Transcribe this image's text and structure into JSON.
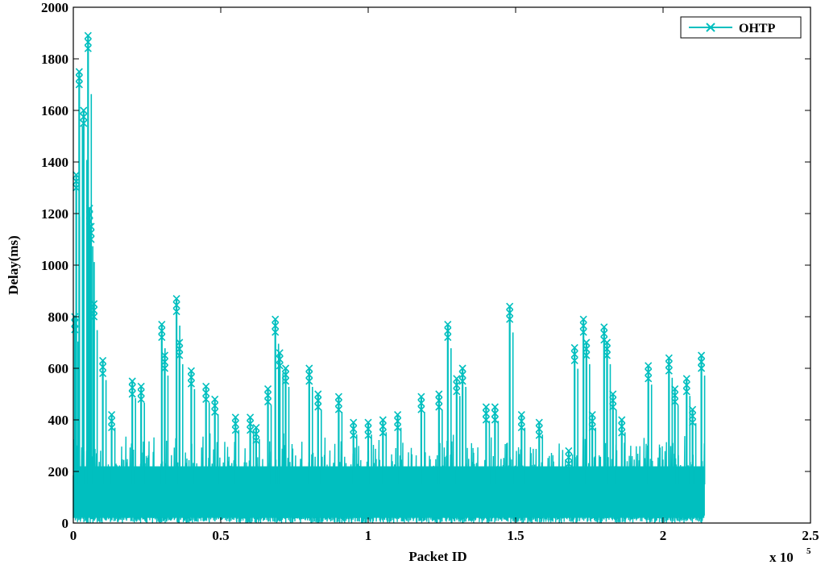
{
  "chart_data": {
    "type": "line",
    "title": "",
    "xlabel": "Packet ID",
    "ylabel": "Delay(ms)",
    "x_multiplier_label": "x 10",
    "x_multiplier_exponent": "5",
    "xlim": [
      0,
      2.5
    ],
    "ylim": [
      0,
      2000
    ],
    "x_ticks": [
      0,
      0.5,
      1,
      1.5,
      2,
      2.5
    ],
    "x_tick_labels": [
      "0",
      "0.5",
      "1",
      "1.5",
      "2",
      "2.5"
    ],
    "y_ticks": [
      0,
      200,
      400,
      600,
      800,
      1000,
      1200,
      1400,
      1600,
      1800,
      2000
    ],
    "y_tick_labels": [
      "0",
      "200",
      "400",
      "600",
      "800",
      "1000",
      "1200",
      "1400",
      "1600",
      "1800",
      "2000"
    ],
    "grid": false,
    "legend_position": "top-right",
    "colors": {
      "series": "#00bfbf",
      "axes": "#000000",
      "background": "#ffffff"
    },
    "series": [
      {
        "name": "OHTP",
        "marker": "x",
        "x_range": [
          0,
          2.14
        ],
        "baseline_band": [
          0,
          330
        ],
        "peaks": [
          {
            "x": 0.005,
            "y": 800
          },
          {
            "x": 0.01,
            "y": 1350
          },
          {
            "x": 0.02,
            "y": 1750
          },
          {
            "x": 0.035,
            "y": 1600
          },
          {
            "x": 0.05,
            "y": 1890
          },
          {
            "x": 0.055,
            "y": 1220
          },
          {
            "x": 0.06,
            "y": 1150
          },
          {
            "x": 0.07,
            "y": 850
          },
          {
            "x": 0.1,
            "y": 630
          },
          {
            "x": 0.13,
            "y": 420
          },
          {
            "x": 0.2,
            "y": 550
          },
          {
            "x": 0.23,
            "y": 530
          },
          {
            "x": 0.3,
            "y": 770
          },
          {
            "x": 0.31,
            "y": 650
          },
          {
            "x": 0.35,
            "y": 870
          },
          {
            "x": 0.36,
            "y": 700
          },
          {
            "x": 0.4,
            "y": 590
          },
          {
            "x": 0.45,
            "y": 530
          },
          {
            "x": 0.48,
            "y": 480
          },
          {
            "x": 0.55,
            "y": 410
          },
          {
            "x": 0.6,
            "y": 410
          },
          {
            "x": 0.62,
            "y": 370
          },
          {
            "x": 0.66,
            "y": 520
          },
          {
            "x": 0.685,
            "y": 790
          },
          {
            "x": 0.7,
            "y": 660
          },
          {
            "x": 0.72,
            "y": 600
          },
          {
            "x": 0.8,
            "y": 600
          },
          {
            "x": 0.83,
            "y": 500
          },
          {
            "x": 0.9,
            "y": 490
          },
          {
            "x": 0.95,
            "y": 390
          },
          {
            "x": 1.0,
            "y": 390
          },
          {
            "x": 1.05,
            "y": 400
          },
          {
            "x": 1.1,
            "y": 420
          },
          {
            "x": 1.18,
            "y": 490
          },
          {
            "x": 1.24,
            "y": 500
          },
          {
            "x": 1.27,
            "y": 770
          },
          {
            "x": 1.3,
            "y": 560
          },
          {
            "x": 1.32,
            "y": 600
          },
          {
            "x": 1.4,
            "y": 450
          },
          {
            "x": 1.43,
            "y": 450
          },
          {
            "x": 1.48,
            "y": 840
          },
          {
            "x": 1.52,
            "y": 420
          },
          {
            "x": 1.58,
            "y": 390
          },
          {
            "x": 1.68,
            "y": 280
          },
          {
            "x": 1.7,
            "y": 680
          },
          {
            "x": 1.73,
            "y": 790
          },
          {
            "x": 1.74,
            "y": 700
          },
          {
            "x": 1.76,
            "y": 420
          },
          {
            "x": 1.8,
            "y": 760
          },
          {
            "x": 1.81,
            "y": 700
          },
          {
            "x": 1.83,
            "y": 500
          },
          {
            "x": 1.86,
            "y": 400
          },
          {
            "x": 1.95,
            "y": 610
          },
          {
            "x": 2.02,
            "y": 640
          },
          {
            "x": 2.04,
            "y": 520
          },
          {
            "x": 2.08,
            "y": 560
          },
          {
            "x": 2.1,
            "y": 440
          },
          {
            "x": 2.13,
            "y": 650
          }
        ]
      }
    ]
  }
}
